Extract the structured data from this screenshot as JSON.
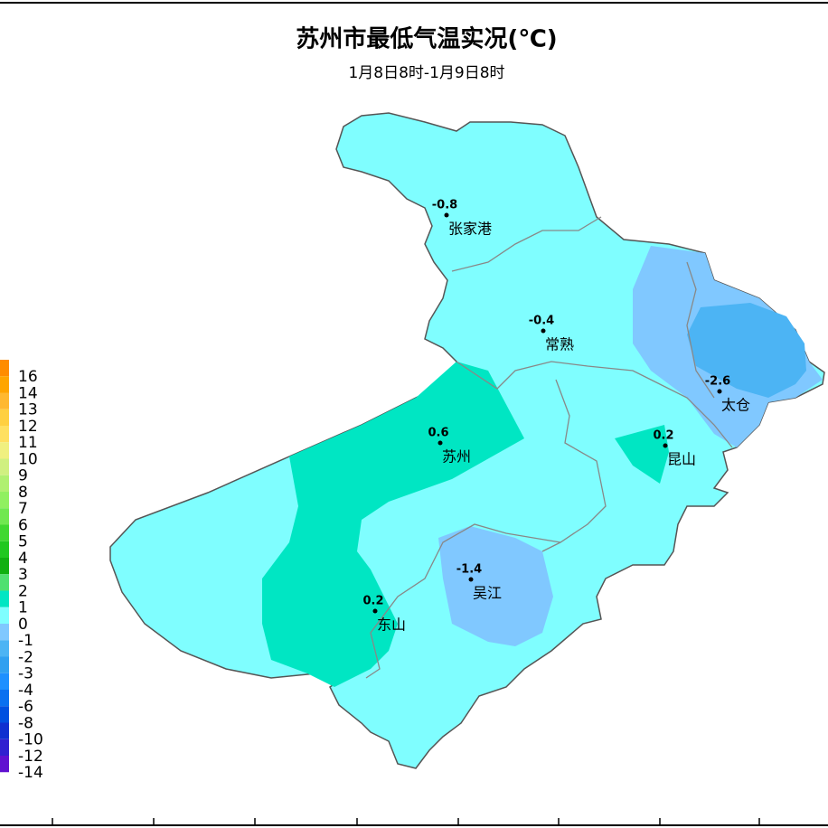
{
  "title": "苏州市最低气温实况(℃)",
  "subtitle": "1月8日8时-1月9日8时",
  "stations": [
    {
      "name": "张家港",
      "value": -0.8
    },
    {
      "name": "常熟",
      "value": -0.4
    },
    {
      "name": "太仓",
      "value": -2.6
    },
    {
      "name": "苏州",
      "value": 0.6
    },
    {
      "name": "昆山",
      "value": 0.2
    },
    {
      "name": "东山",
      "value": 0.2
    },
    {
      "name": "吴江",
      "value": -1.4
    }
  ],
  "legend": {
    "labels": [
      16,
      14,
      13,
      12,
      11,
      10,
      9,
      8,
      7,
      6,
      5,
      4,
      3,
      2,
      1,
      0,
      -1,
      -2,
      -3,
      -4,
      -6,
      -8,
      -10,
      -12,
      -14
    ]
  }
}
